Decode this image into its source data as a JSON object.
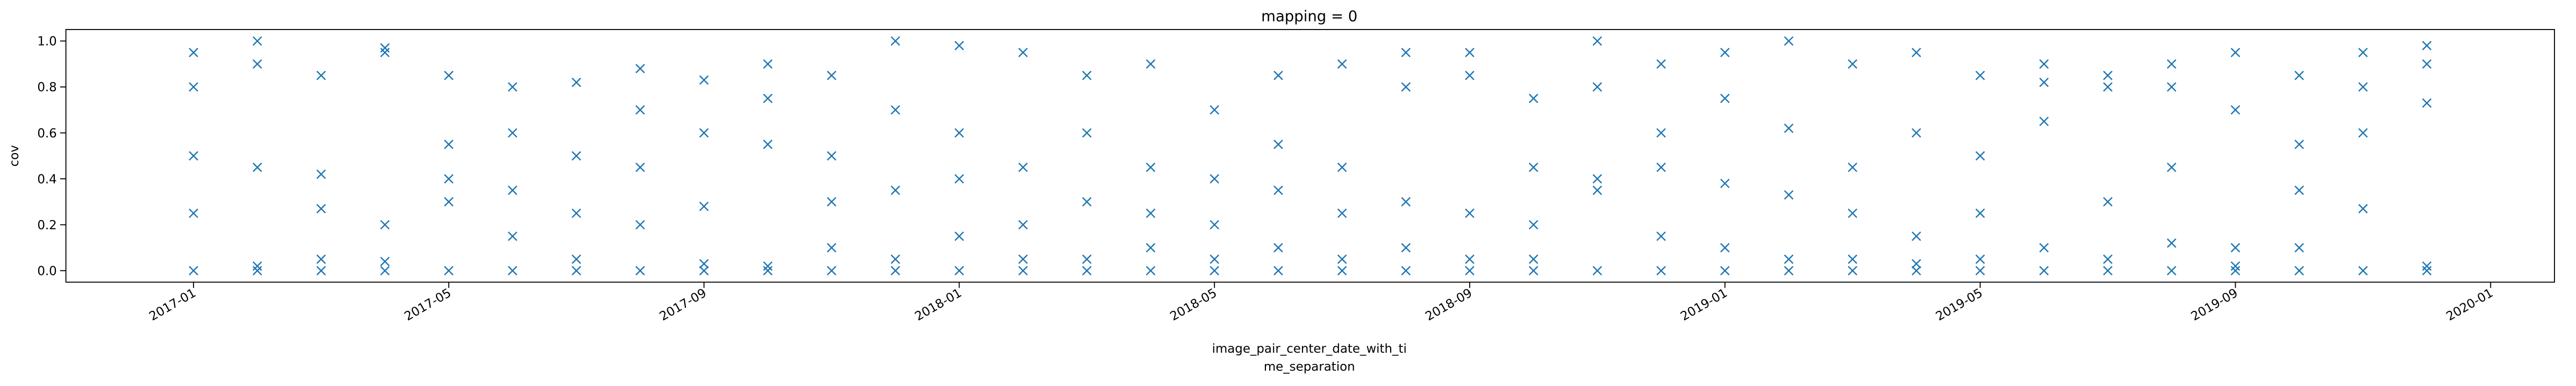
{
  "chart_data": {
    "type": "scatter",
    "title": "mapping = 0",
    "ylabel": "cov",
    "xlabel": [
      "image_pair_center_date_with_ti",
      "me_separation"
    ],
    "marker": "x",
    "color": "#1f77b4",
    "xlim": [
      "2016-11",
      "2020-02"
    ],
    "xticks": [
      "2017-01",
      "2017-05",
      "2017-09",
      "2018-01",
      "2018-05",
      "2018-09",
      "2019-01",
      "2019-05",
      "2019-09",
      "2020-01"
    ],
    "ylim": [
      -0.05,
      1.05
    ],
    "yticks": [
      {
        "value": 0,
        "label": "0.0"
      },
      {
        "value": 0.2,
        "label": "0.2"
      },
      {
        "value": 0.4,
        "label": "0.4"
      },
      {
        "value": 0.6,
        "label": "0.6"
      },
      {
        "value": 0.8,
        "label": "0.8"
      },
      {
        "value": 1,
        "label": "1.0"
      }
    ],
    "x": [
      "2017-01",
      "2017-01",
      "2017-01",
      "2017-01",
      "2017-01",
      "2017-02",
      "2017-02",
      "2017-02",
      "2017-02",
      "2017-02",
      "2017-03",
      "2017-03",
      "2017-03",
      "2017-03",
      "2017-03",
      "2017-04",
      "2017-04",
      "2017-04",
      "2017-04",
      "2017-04",
      "2017-05",
      "2017-05",
      "2017-05",
      "2017-05",
      "2017-05",
      "2017-06",
      "2017-06",
      "2017-06",
      "2017-06",
      "2017-06",
      "2017-07",
      "2017-07",
      "2017-07",
      "2017-07",
      "2017-07",
      "2017-08",
      "2017-08",
      "2017-08",
      "2017-08",
      "2017-08",
      "2017-09",
      "2017-09",
      "2017-09",
      "2017-09",
      "2017-09",
      "2017-10",
      "2017-10",
      "2017-10",
      "2017-10",
      "2017-10",
      "2017-11",
      "2017-11",
      "2017-11",
      "2017-11",
      "2017-11",
      "2017-12",
      "2017-12",
      "2017-12",
      "2017-12",
      "2017-12",
      "2018-01",
      "2018-01",
      "2018-01",
      "2018-01",
      "2018-01",
      "2018-02",
      "2018-02",
      "2018-02",
      "2018-02",
      "2018-02",
      "2018-03",
      "2018-03",
      "2018-03",
      "2018-03",
      "2018-03",
      "2018-04",
      "2018-04",
      "2018-04",
      "2018-04",
      "2018-04",
      "2018-05",
      "2018-05",
      "2018-05",
      "2018-05",
      "2018-05",
      "2018-06",
      "2018-06",
      "2018-06",
      "2018-06",
      "2018-06",
      "2018-07",
      "2018-07",
      "2018-07",
      "2018-07",
      "2018-07",
      "2018-08",
      "2018-08",
      "2018-08",
      "2018-08",
      "2018-08",
      "2018-09",
      "2018-09",
      "2018-09",
      "2018-09",
      "2018-09",
      "2018-10",
      "2018-10",
      "2018-10",
      "2018-10",
      "2018-10",
      "2018-11",
      "2018-11",
      "2018-11",
      "2018-11",
      "2018-11",
      "2018-12",
      "2018-12",
      "2018-12",
      "2018-12",
      "2018-12",
      "2019-01",
      "2019-01",
      "2019-01",
      "2019-01",
      "2019-01",
      "2019-02",
      "2019-02",
      "2019-02",
      "2019-02",
      "2019-02",
      "2019-03",
      "2019-03",
      "2019-03",
      "2019-03",
      "2019-03",
      "2019-04",
      "2019-04",
      "2019-04",
      "2019-04",
      "2019-04",
      "2019-05",
      "2019-05",
      "2019-05",
      "2019-05",
      "2019-05",
      "2019-06",
      "2019-06",
      "2019-06",
      "2019-06",
      "2019-06",
      "2019-07",
      "2019-07",
      "2019-07",
      "2019-07",
      "2019-07",
      "2019-08",
      "2019-08",
      "2019-08",
      "2019-08",
      "2019-08",
      "2019-09",
      "2019-09",
      "2019-09",
      "2019-09",
      "2019-09",
      "2019-10",
      "2019-10",
      "2019-10",
      "2019-10",
      "2019-10",
      "2019-11",
      "2019-11",
      "2019-11",
      "2019-11",
      "2019-11",
      "2019-12",
      "2019-12",
      "2019-12",
      "2019-12",
      "2019-12"
    ],
    "values": [
      0,
      0.25,
      0.5,
      0.95,
      0.8,
      0,
      0.45,
      0.9,
      1.0,
      0.02,
      0,
      0.27,
      0.85,
      0.42,
      0.05,
      0,
      0.2,
      0.97,
      0.04,
      0.95,
      0,
      0.4,
      0.85,
      0.55,
      0.3,
      0,
      0.6,
      0.8,
      0.35,
      0.15,
      0,
      0.82,
      0.5,
      0.25,
      0.05,
      0,
      0.88,
      0.45,
      0.2,
      0.7,
      0,
      0.83,
      0.28,
      0.03,
      0.6,
      0,
      0.9,
      0.55,
      0.02,
      0.75,
      0,
      0.5,
      0.85,
      0.3,
      0.1,
      0,
      1.0,
      0.7,
      0.35,
      0.05,
      0,
      0.98,
      0.6,
      0.15,
      0.4,
      0,
      0.95,
      0.45,
      0.2,
      0.05,
      0,
      0.85,
      0.3,
      0.05,
      0.6,
      0,
      0.9,
      0.45,
      0.25,
      0.1,
      0,
      0.7,
      0.4,
      0.05,
      0.2,
      0,
      0.85,
      0.35,
      0.1,
      0.55,
      0,
      0.9,
      0.45,
      0.25,
      0.05,
      0,
      0.95,
      0.3,
      0.1,
      0.8,
      0,
      0.85,
      0.25,
      0.05,
      0.95,
      0,
      0.75,
      0.45,
      0.2,
      0.05,
      0,
      0.4,
      0.8,
      0.35,
      1.0,
      0,
      0.9,
      0.45,
      0.6,
      0.15,
      0,
      0.95,
      0.38,
      0.75,
      0.1,
      0,
      1.0,
      0.62,
      0.33,
      0.05,
      0,
      0.9,
      0.45,
      0.25,
      0.05,
      0,
      0.95,
      0.6,
      0.15,
      0.03,
      0,
      0.85,
      0.5,
      0.25,
      0.05,
      0,
      0.82,
      0.9,
      0.65,
      0.1,
      0,
      0.85,
      0.8,
      0.3,
      0.05,
      0,
      0.8,
      0.45,
      0.12,
      0.9,
      0,
      0.95,
      0.7,
      0.1,
      0.02,
      0,
      0.85,
      0.35,
      0.1,
      0.55,
      0,
      0.95,
      0.6,
      0.27,
      0.8,
      0,
      0.98,
      0.73,
      0.9,
      0.02
    ]
  }
}
